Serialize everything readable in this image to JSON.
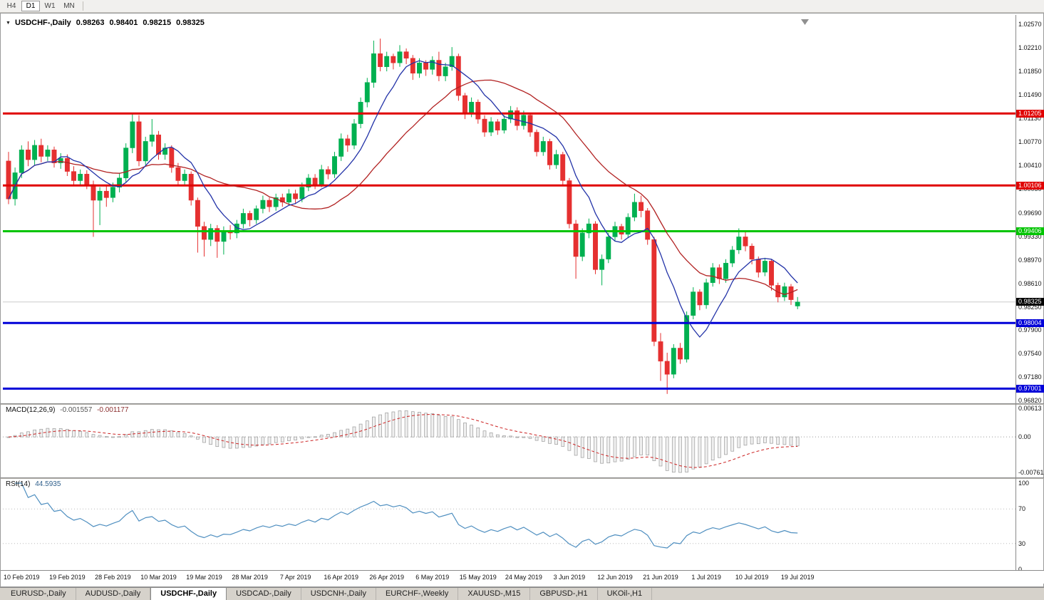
{
  "toolbar": {
    "timeframes": [
      {
        "label": "H4",
        "active": false
      },
      {
        "label": "D1",
        "active": true
      },
      {
        "label": "W1",
        "active": false
      },
      {
        "label": "MN",
        "active": false
      }
    ]
  },
  "chart_header": {
    "collapse_icon": "▼",
    "symbol_title": "USDCHF-,Daily",
    "ohlc": {
      "open": "0.98263",
      "high": "0.98401",
      "low": "0.98215",
      "close": "0.98325"
    }
  },
  "price_axis": {
    "ticks": [
      "1.02570",
      "1.02210",
      "1.01850",
      "1.01490",
      "1.01130",
      "1.00770",
      "1.00410",
      "1.00050",
      "0.99690",
      "0.99330",
      "0.98970",
      "0.98610",
      "0.98250",
      "0.97900",
      "0.97540",
      "0.97180",
      "0.96820"
    ]
  },
  "current_price": {
    "label": "0.98325",
    "value": 0.98325,
    "box_color": "#000000"
  },
  "indicators": {
    "macd": {
      "name": "MACD(12,26,9)",
      "main_value": "-0.001557",
      "signal_value": "-0.001177",
      "axis_ticks": [
        "0.00613",
        "0.00",
        "-0.007612"
      ]
    },
    "rsi": {
      "name": "RSI(14)",
      "value": "44.5935",
      "axis_ticks": [
        "100",
        "70",
        "30",
        "0"
      ]
    }
  },
  "time_axis": {
    "labels": [
      "10 Feb 2019",
      "19 Feb 2019",
      "28 Feb 2019",
      "10 Mar 2019",
      "19 Mar 2019",
      "28 Mar 2019",
      "7 Apr 2019",
      "16 Apr 2019",
      "26 Apr 2019",
      "6 May 2019",
      "15 May 2019",
      "24 May 2019",
      "3 Jun 2019",
      "12 Jun 2019",
      "21 Jun 2019",
      "1 Jul 2019",
      "10 Jul 2019",
      "19 Jul 2019"
    ]
  },
  "tabs": [
    {
      "label": "EURUSD-,Daily",
      "active": false
    },
    {
      "label": "AUDUSD-,Daily",
      "active": false
    },
    {
      "label": "USDCHF-,Daily",
      "active": true
    },
    {
      "label": "USDCAD-,Daily",
      "active": false
    },
    {
      "label": "USDCNH-,Daily",
      "active": false
    },
    {
      "label": "EURCHF-,Weekly",
      "active": false
    },
    {
      "label": "XAUUSD-,M15",
      "active": false
    },
    {
      "label": "GBPUSD-,H1",
      "active": false
    },
    {
      "label": "UKOil-,H1",
      "active": false
    }
  ],
  "chart_data": {
    "type": "candlestick",
    "title": "USDCHF-,Daily",
    "ylim": [
      0.9682,
      1.0257
    ],
    "x_tick_interval": 7,
    "first_tick_index": 2,
    "colors": {
      "bull": "#00b050",
      "bear": "#e53030"
    },
    "overlays": [
      {
        "name": "ma-fast",
        "type": "sma",
        "period": 8,
        "color": "#2333a8"
      },
      {
        "name": "ma-slow",
        "type": "sma",
        "period": 21,
        "color": "#b22222"
      }
    ],
    "hlines": [
      {
        "value": 1.01205,
        "label": "1.01205",
        "color": "#e00000",
        "width": 3
      },
      {
        "value": 1.00106,
        "label": "1.00106",
        "color": "#e00000",
        "width": 3
      },
      {
        "value": 0.99406,
        "label": "0.99406",
        "color": "#00c400",
        "width": 3
      },
      {
        "value": 0.98004,
        "label": "0.98004",
        "color": "#0000d8",
        "width": 3
      },
      {
        "value": 0.97001,
        "label": "0.97001",
        "color": "#0000d8",
        "width": 3
      }
    ],
    "sub_panels": [
      {
        "name": "macd",
        "type": "macd",
        "params": [
          12,
          26,
          9
        ],
        "range": [
          -0.007612,
          0.00613
        ],
        "last_values": [
          -0.001557,
          -0.001177
        ],
        "signal_color": "#cc2222",
        "hist_fill": "#f0f0f0",
        "hist_stroke": "#9a9a9a"
      },
      {
        "name": "rsi",
        "type": "rsi",
        "params": [
          14
        ],
        "range": [
          0,
          100
        ],
        "levels": [
          30,
          70
        ],
        "last_value": 44.5935,
        "color": "#4f8fc0"
      }
    ],
    "candles": [
      [
        1.0048,
        1.0062,
        0.9982,
        0.999
      ],
      [
        0.999,
        1.0038,
        0.998,
        1.003
      ],
      [
        1.003,
        1.0072,
        1.0022,
        1.0065
      ],
      [
        1.0065,
        1.0078,
        1.004,
        1.005
      ],
      [
        1.005,
        1.008,
        1.0042,
        1.0072
      ],
      [
        1.0072,
        1.0082,
        1.0046,
        1.0055
      ],
      [
        1.0055,
        1.0072,
        1.0048,
        1.0065
      ],
      [
        1.0065,
        1.007,
        1.0038,
        1.0045
      ],
      [
        1.0045,
        1.006,
        1.0036,
        1.0052
      ],
      [
        1.0052,
        1.0058,
        1.0025,
        1.0032
      ],
      [
        1.0032,
        1.004,
        1.001,
        1.0018
      ],
      [
        1.0018,
        1.0035,
        1.0012,
        1.0028
      ],
      [
        1.0028,
        1.0034,
        1.0005,
        1.0012
      ],
      [
        1.0012,
        1.0018,
        0.9932,
        0.9988
      ],
      [
        0.9988,
        1.0008,
        0.995,
        1.0002
      ],
      [
        1.0002,
        1.001,
        0.9978,
        0.9992
      ],
      [
        0.9992,
        1.0015,
        0.9985,
        1.0008
      ],
      [
        1.0008,
        1.003,
        1.0,
        1.0022
      ],
      [
        1.0022,
        1.0075,
        1.0016,
        1.0068
      ],
      [
        1.0068,
        1.0121,
        1.006,
        1.0108
      ],
      [
        1.0108,
        1.0118,
        1.004,
        1.0048
      ],
      [
        1.0048,
        1.0085,
        1.0042,
        1.0078
      ],
      [
        1.0078,
        1.0112,
        1.007,
        1.0088
      ],
      [
        1.0088,
        1.0094,
        1.005,
        1.0058
      ],
      [
        1.0058,
        1.0075,
        1.005,
        1.0068
      ],
      [
        1.0068,
        1.0072,
        1.003,
        1.0038
      ],
      [
        1.0038,
        1.0045,
        1.001,
        1.0018
      ],
      [
        1.0018,
        1.0035,
        1.0012,
        1.0028
      ],
      [
        1.0028,
        1.0032,
        0.998,
        0.9988
      ],
      [
        0.9988,
        0.9992,
        0.9908,
        0.9948
      ],
      [
        0.9948,
        0.9955,
        0.9902,
        0.9928
      ],
      [
        0.9928,
        0.9952,
        0.9918,
        0.9945
      ],
      [
        0.9945,
        0.995,
        0.99,
        0.9925
      ],
      [
        0.9925,
        0.9948,
        0.9905,
        0.9942
      ],
      [
        0.9942,
        0.995,
        0.9928,
        0.9938
      ],
      [
        0.9938,
        0.9958,
        0.993,
        0.9952
      ],
      [
        0.9952,
        0.9975,
        0.9945,
        0.9968
      ],
      [
        0.9968,
        0.9972,
        0.9948,
        0.9958
      ],
      [
        0.9958,
        0.998,
        0.9952,
        0.9975
      ],
      [
        0.9975,
        0.9995,
        0.9968,
        0.9988
      ],
      [
        0.9988,
        0.9992,
        0.997,
        0.9978
      ],
      [
        0.9978,
        0.9998,
        0.9972,
        0.9992
      ],
      [
        0.9992,
        0.9998,
        0.9978,
        0.9985
      ],
      [
        0.9985,
        1.0005,
        0.998,
        0.9998
      ],
      [
        0.9998,
        1.0004,
        0.9982,
        0.999
      ],
      [
        0.999,
        1.0015,
        0.9985,
        1.0008
      ],
      [
        1.0008,
        1.0028,
        1.0002,
        1.0022
      ],
      [
        1.0022,
        1.0028,
        1.0005,
        1.0012
      ],
      [
        1.0012,
        1.0042,
        1.0008,
        1.0035
      ],
      [
        1.0035,
        1.004,
        1.002,
        1.0028
      ],
      [
        1.0028,
        1.0062,
        1.0022,
        1.0055
      ],
      [
        1.0055,
        1.009,
        1.0048,
        1.0082
      ],
      [
        1.0082,
        1.0088,
        1.0062,
        1.0072
      ],
      [
        1.0072,
        1.0112,
        1.0066,
        1.0105
      ],
      [
        1.0105,
        1.0145,
        1.0098,
        1.0138
      ],
      [
        1.0138,
        1.0175,
        1.013,
        1.0168
      ],
      [
        1.0168,
        1.0232,
        1.016,
        1.0212
      ],
      [
        1.0212,
        1.0235,
        1.0185,
        1.0192
      ],
      [
        1.0192,
        1.0215,
        1.0185,
        1.0208
      ],
      [
        1.0208,
        1.0212,
        1.0188,
        1.0198
      ],
      [
        1.0198,
        1.0225,
        1.0192,
        1.0215
      ],
      [
        1.0215,
        1.022,
        1.0196,
        1.0205
      ],
      [
        1.0205,
        1.021,
        1.0172,
        1.0182
      ],
      [
        1.0182,
        1.0205,
        1.0175,
        1.0198
      ],
      [
        1.0198,
        1.0202,
        1.0178,
        1.0188
      ],
      [
        1.0188,
        1.0208,
        1.018,
        1.0202
      ],
      [
        1.0202,
        1.0215,
        1.017,
        1.0178
      ],
      [
        1.0178,
        1.0198,
        1.017,
        1.0192
      ],
      [
        1.0192,
        1.0222,
        1.0186,
        1.0208
      ],
      [
        1.0208,
        1.0212,
        1.014,
        1.0148
      ],
      [
        1.0148,
        1.0152,
        1.0112,
        1.0122
      ],
      [
        1.0122,
        1.0145,
        1.0115,
        1.0138
      ],
      [
        1.0138,
        1.0142,
        1.0105,
        1.0112
      ],
      [
        1.0112,
        1.0118,
        1.0085,
        1.0092
      ],
      [
        1.0092,
        1.0115,
        1.0086,
        1.0108
      ],
      [
        1.0108,
        1.0112,
        1.0088,
        1.0095
      ],
      [
        1.0095,
        1.0118,
        1.009,
        1.0112
      ],
      [
        1.0112,
        1.0132,
        1.0106,
        1.0125
      ],
      [
        1.0125,
        1.013,
        1.0095,
        1.0102
      ],
      [
        1.0102,
        1.0125,
        1.0096,
        1.0118
      ],
      [
        1.0118,
        1.0122,
        1.0085,
        1.0092
      ],
      [
        1.0092,
        1.0096,
        1.0055,
        1.0062
      ],
      [
        1.0062,
        1.0085,
        1.0056,
        1.0078
      ],
      [
        1.0078,
        1.0082,
        1.0035,
        1.0042
      ],
      [
        1.0042,
        1.0065,
        1.0036,
        1.0058
      ],
      [
        1.0058,
        1.0062,
        1.001,
        1.0018
      ],
      [
        1.0018,
        1.0022,
        0.9945,
        0.9952
      ],
      [
        0.9952,
        0.9958,
        0.9868,
        0.9902
      ],
      [
        0.9902,
        0.9945,
        0.9895,
        0.9938
      ],
      [
        0.9938,
        0.996,
        0.993,
        0.9952
      ],
      [
        0.9952,
        0.9956,
        0.9875,
        0.9882
      ],
      [
        0.9882,
        0.9905,
        0.9858,
        0.9898
      ],
      [
        0.9898,
        0.9938,
        0.9892,
        0.9932
      ],
      [
        0.9932,
        0.9955,
        0.9926,
        0.9948
      ],
      [
        0.9948,
        0.9952,
        0.9928,
        0.9936
      ],
      [
        0.9936,
        0.9968,
        0.993,
        0.9962
      ],
      [
        0.9962,
        0.9998,
        0.9956,
        0.9985
      ],
      [
        0.9985,
        0.9995,
        0.9962,
        0.9972
      ],
      [
        0.9972,
        0.9976,
        0.992,
        0.9928
      ],
      [
        0.9928,
        0.9932,
        0.9765,
        0.9772
      ],
      [
        0.9772,
        0.9785,
        0.9712,
        0.9742
      ],
      [
        0.9742,
        0.9755,
        0.9692,
        0.9722
      ],
      [
        0.9722,
        0.9768,
        0.9716,
        0.9762
      ],
      [
        0.9762,
        0.977,
        0.9738,
        0.9745
      ],
      [
        0.9745,
        0.9818,
        0.974,
        0.9812
      ],
      [
        0.9812,
        0.9855,
        0.9806,
        0.9848
      ],
      [
        0.9848,
        0.9852,
        0.982,
        0.9828
      ],
      [
        0.9828,
        0.9868,
        0.9822,
        0.9862
      ],
      [
        0.9862,
        0.9892,
        0.9856,
        0.9885
      ],
      [
        0.9885,
        0.989,
        0.986,
        0.9868
      ],
      [
        0.9868,
        0.9898,
        0.9862,
        0.9892
      ],
      [
        0.9892,
        0.9918,
        0.9886,
        0.9912
      ],
      [
        0.9912,
        0.9945,
        0.9906,
        0.9932
      ],
      [
        0.9932,
        0.994,
        0.991,
        0.9918
      ],
      [
        0.9918,
        0.9922,
        0.989,
        0.9898
      ],
      [
        0.9898,
        0.9902,
        0.987,
        0.9878
      ],
      [
        0.9878,
        0.99,
        0.9872,
        0.9895
      ],
      [
        0.9895,
        0.9898,
        0.985,
        0.9858
      ],
      [
        0.9858,
        0.9862,
        0.9832,
        0.984
      ],
      [
        0.984,
        0.9862,
        0.9834,
        0.9856
      ],
      [
        0.9856,
        0.986,
        0.9828,
        0.9836
      ],
      [
        0.98263,
        0.98401,
        0.98215,
        0.98325
      ]
    ]
  }
}
